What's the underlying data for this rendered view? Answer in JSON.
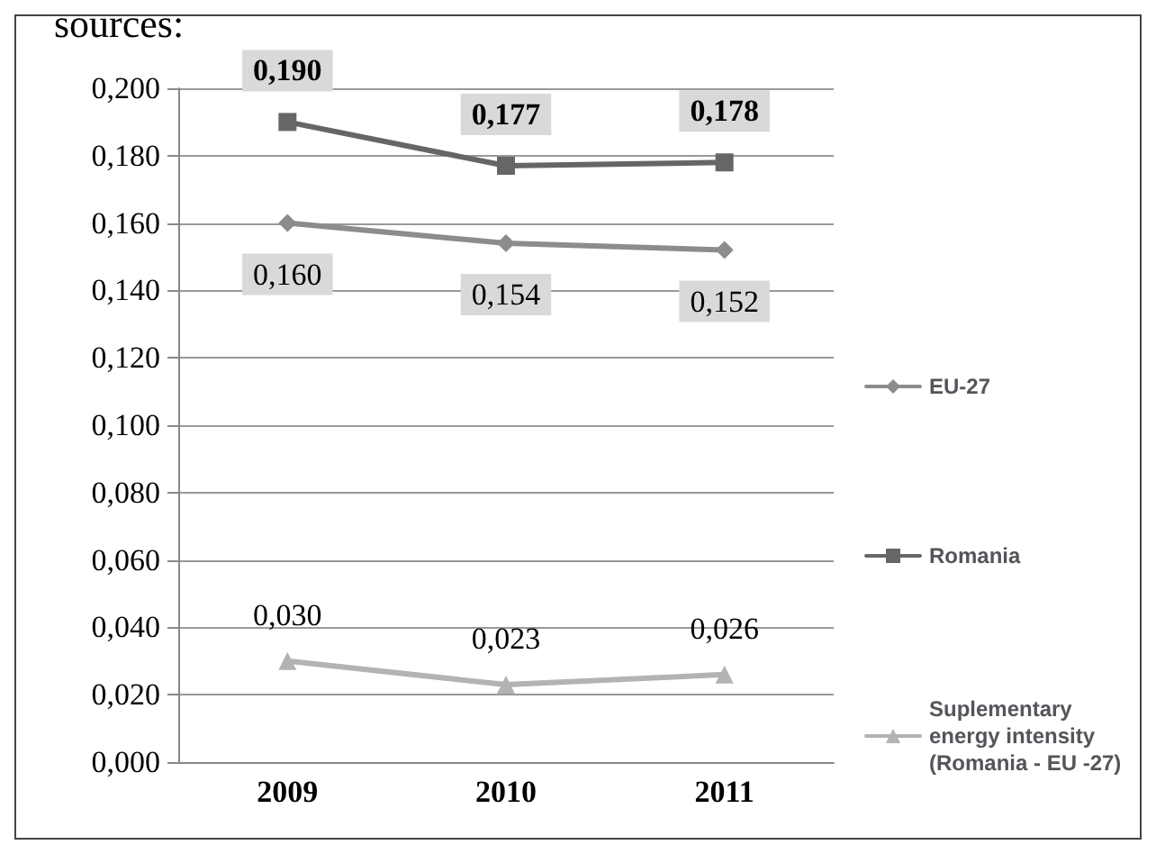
{
  "chart_data": {
    "type": "line",
    "categories": [
      "2009",
      "2010",
      "2011"
    ],
    "series": [
      {
        "name": "EU-27",
        "color": "#8c8c8c",
        "marker": "diamond",
        "values": [
          0.16,
          0.154,
          0.152
        ],
        "value_labels": [
          "0,160",
          "0,154",
          "0,152"
        ]
      },
      {
        "name": "Romania",
        "color": "#666666",
        "marker": "square",
        "values": [
          0.19,
          0.177,
          0.178
        ],
        "value_labels": [
          "0,190",
          "0,177",
          "0,178"
        ]
      },
      {
        "name": "Suplementary energy intensity (Romania - EU -27)",
        "color": "#b3b3b3",
        "marker": "triangle",
        "values": [
          0.03,
          0.023,
          0.026
        ],
        "value_labels": [
          "0,030",
          "0,023",
          "0,026"
        ]
      }
    ],
    "ylim": [
      0,
      0.2
    ],
    "yticks": [
      {
        "value": 0,
        "label": "0,000"
      },
      {
        "value": 0.02,
        "label": "0,020"
      },
      {
        "value": 0.04,
        "label": "0,040"
      },
      {
        "value": 0.06,
        "label": "0,060"
      },
      {
        "value": 0.08,
        "label": "0,080"
      },
      {
        "value": 0.1,
        "label": "0,100"
      },
      {
        "value": 0.12,
        "label": "0,120"
      },
      {
        "value": 0.14,
        "label": "0,140"
      },
      {
        "value": 0.16,
        "label": "0,160"
      },
      {
        "value": 0.18,
        "label": "0,180"
      },
      {
        "value": 0.2,
        "label": "0,200"
      }
    ],
    "grid": "y",
    "legend": "right",
    "line_style": "solid",
    "annotations": [
      "sources:"
    ]
  }
}
